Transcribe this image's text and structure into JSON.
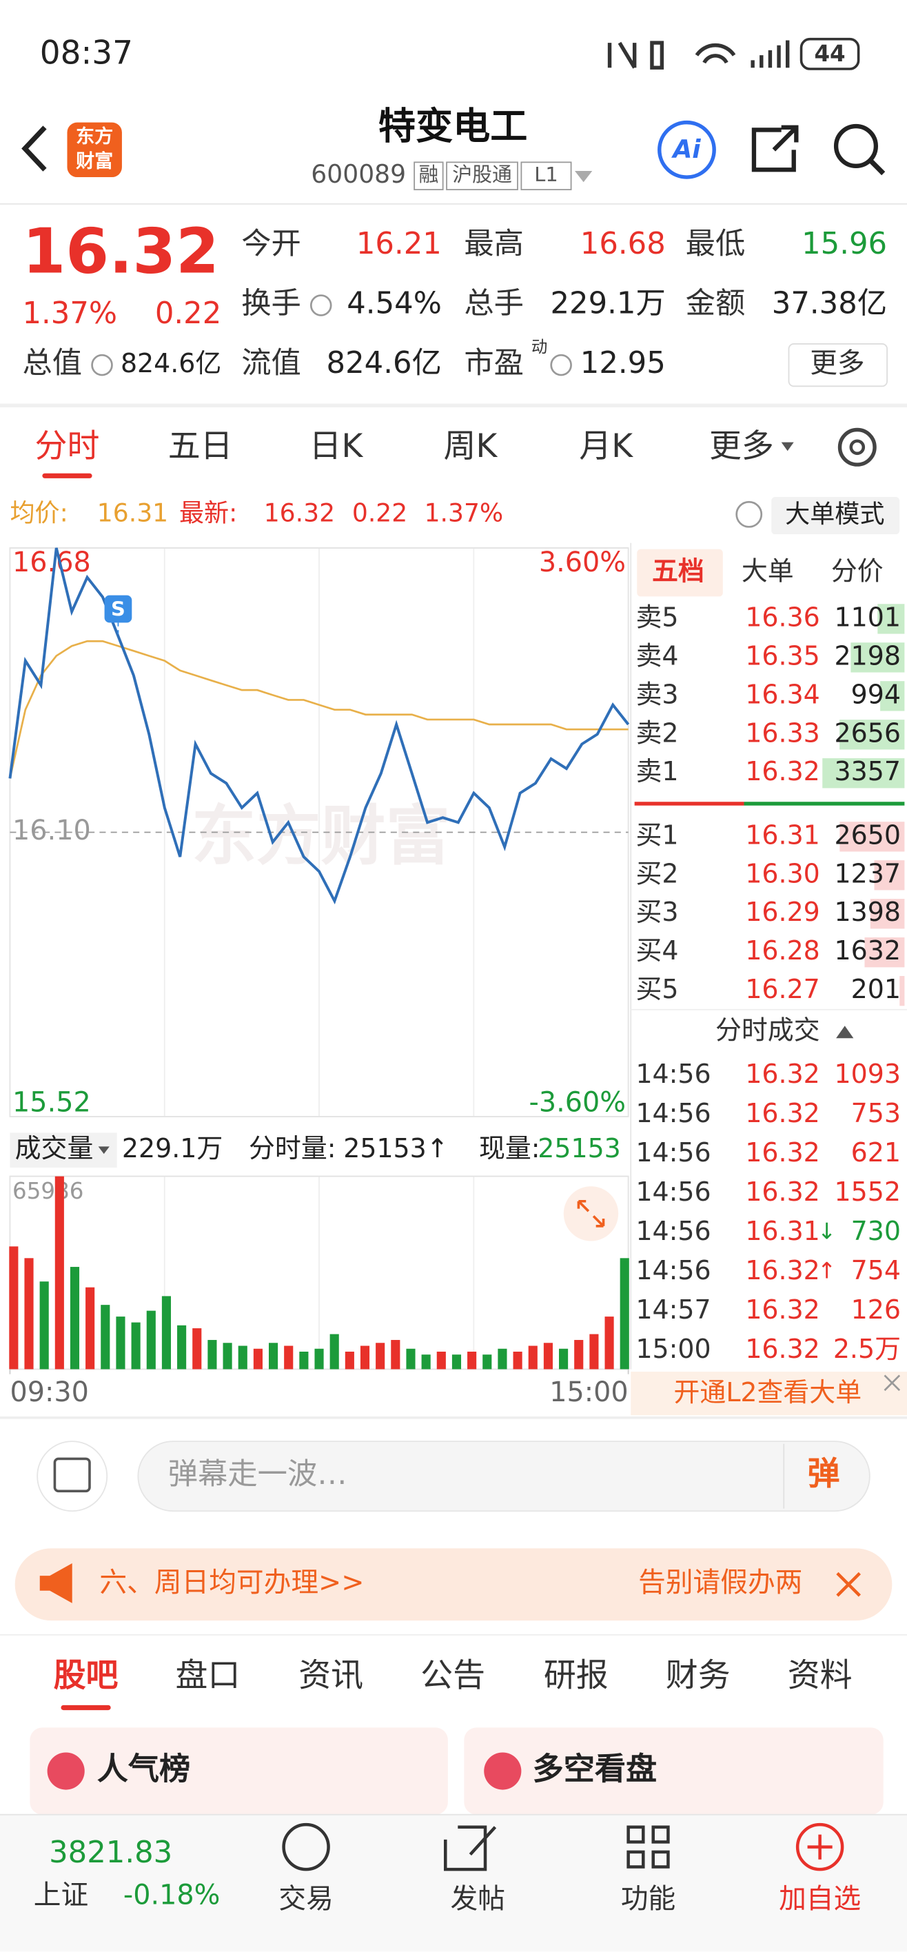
{
  "status_bar": {
    "time": "08:37",
    "battery": "44"
  },
  "header": {
    "logo": [
      "东方",
      "财富"
    ],
    "title": "特变电工",
    "code": "600089",
    "tags": [
      "融",
      "沪股通",
      "L1"
    ],
    "ai": "Ai"
  },
  "quote": {
    "price": "16.32",
    "pct": "1.37%",
    "change": "0.22",
    "color": "#e8312a",
    "fields": [
      {
        "label": "今开",
        "value": "16.21",
        "color": "#e8312a"
      },
      {
        "label": "最高",
        "value": "16.68",
        "color": "#e8312a"
      },
      {
        "label": "最低",
        "value": "15.96",
        "color": "#1c9b3a"
      },
      {
        "label": "换手",
        "value": "4.54%",
        "color": "#222222"
      },
      {
        "label": "总手",
        "value": "229.1万",
        "color": "#222222"
      },
      {
        "label": "金额",
        "value": "37.38亿",
        "color": "#222222"
      },
      {
        "label": "总值",
        "value": "824.6亿",
        "color": "#222222"
      },
      {
        "label": "流值",
        "value": "824.6亿",
        "color": "#222222"
      },
      {
        "label": "市盈",
        "sup": "动",
        "value": "12.95",
        "color": "#222222"
      }
    ],
    "more": "更多"
  },
  "tabs": [
    "分时",
    "五日",
    "日K",
    "周K",
    "月K",
    "更多"
  ],
  "info_bar": {
    "avg_label": "均价:",
    "avg": "16.31",
    "latest_label": "最新:",
    "latest": "16.32",
    "change": "0.22",
    "pct": "1.37%",
    "mode": "大单模式"
  },
  "watermark": "东方财富",
  "chart_data": [
    {
      "type": "line",
      "x": [
        0,
        6,
        12,
        18,
        24,
        30,
        36,
        42,
        48,
        54,
        60,
        66,
        72,
        78,
        84,
        90,
        96,
        102,
        108,
        114,
        120,
        126,
        132,
        138,
        144,
        150,
        156,
        162,
        168,
        174,
        180,
        186,
        192,
        198,
        204,
        210,
        216,
        222,
        228,
        234,
        240
      ],
      "xlim": [
        0,
        240
      ],
      "xticks": [
        {
          "value": 0,
          "label": "09:30"
        },
        {
          "value": 240,
          "label": "15:00"
        }
      ],
      "ylim": [
        15.52,
        16.68
      ],
      "yticks": [
        15.52,
        {
          "value": 16.1,
          "label": "16.10"
        },
        16.68
      ],
      "y2lim": [
        -3.6,
        3.6
      ],
      "y2ticks": [
        {
          "value": -3.6,
          "label": "-3.60%"
        },
        {
          "value": 3.6,
          "label": "3.60%"
        }
      ],
      "series": [
        {
          "color": "#2f6fb8",
          "values": [
            16.21,
            16.45,
            16.4,
            16.68,
            16.55,
            16.62,
            16.58,
            16.5,
            16.42,
            16.3,
            16.15,
            16.05,
            16.28,
            16.22,
            16.2,
            16.15,
            16.18,
            16.08,
            16.12,
            16.05,
            16.02,
            15.96,
            16.05,
            16.15,
            16.22,
            16.32,
            16.22,
            16.12,
            16.13,
            16.12,
            16.18,
            16.15,
            16.07,
            16.18,
            16.2,
            16.25,
            16.23,
            16.28,
            16.3,
            16.36,
            16.32
          ]
        },
        {
          "color": "#e8b04a",
          "values": [
            16.21,
            16.35,
            16.42,
            16.46,
            16.48,
            16.49,
            16.49,
            16.48,
            16.47,
            16.46,
            16.45,
            16.43,
            16.42,
            16.41,
            16.4,
            16.39,
            16.39,
            16.38,
            16.37,
            16.37,
            16.36,
            16.35,
            16.35,
            16.34,
            16.34,
            16.34,
            16.34,
            16.33,
            16.33,
            16.33,
            16.33,
            16.32,
            16.32,
            16.32,
            16.32,
            16.32,
            16.31,
            16.31,
            16.31,
            16.31,
            16.31
          ]
        }
      ],
      "annotations": [
        {
          "x": 42,
          "text": "S"
        }
      ]
    },
    {
      "type": "bar",
      "x": [
        0,
        6,
        12,
        18,
        24,
        30,
        36,
        42,
        48,
        54,
        60,
        66,
        72,
        78,
        84,
        90,
        96,
        102,
        108,
        114,
        120,
        126,
        132,
        138,
        144,
        150,
        156,
        162,
        168,
        174,
        180,
        186,
        192,
        198,
        204,
        210,
        216,
        222,
        228,
        234,
        240
      ],
      "xlim": [
        0,
        240
      ],
      "ylim": [
        0,
        65986
      ],
      "yticks": [
        65986
      ],
      "up_color": "#e8312a",
      "down_color": "#1c9b3a",
      "values": [
        42000,
        38000,
        30000,
        65986,
        35000,
        28000,
        22000,
        18000,
        16000,
        20000,
        25000,
        15000,
        14000,
        10000,
        9000,
        8000,
        7000,
        9000,
        8000,
        6000,
        7000,
        12000,
        6000,
        8000,
        9000,
        10000,
        7000,
        5000,
        6000,
        5000,
        6000,
        5000,
        7000,
        6000,
        8000,
        9000,
        7000,
        10000,
        12000,
        18000,
        38000
      ]
    }
  ],
  "volume_bar": {
    "label": "成交量",
    "total": "229.1万",
    "minute_label": "分时量:",
    "minute": "25153↑",
    "now_label": "现量:",
    "now": "25153"
  },
  "order_book": {
    "tabs": [
      "五档",
      "大单",
      "分价"
    ],
    "asks": [
      {
        "label": "卖5",
        "price": "16.36",
        "vol": 1101
      },
      {
        "label": "卖4",
        "price": "16.35",
        "vol": 2198
      },
      {
        "label": "卖3",
        "price": "16.34",
        "vol": 994
      },
      {
        "label": "卖2",
        "price": "16.33",
        "vol": 2656
      },
      {
        "label": "卖1",
        "price": "16.32",
        "vol": 3357
      }
    ],
    "bids": [
      {
        "label": "买1",
        "price": "16.31",
        "vol": 2650
      },
      {
        "label": "买2",
        "price": "16.30",
        "vol": 1237
      },
      {
        "label": "买3",
        "price": "16.29",
        "vol": 1398
      },
      {
        "label": "买4",
        "price": "16.28",
        "vol": 1632
      },
      {
        "label": "买5",
        "price": "16.27",
        "vol": 201
      }
    ]
  },
  "trades": {
    "title": "分时成交",
    "rows": [
      {
        "time": "14:56",
        "price": "16.32",
        "vol": "1093",
        "color": "#e8312a"
      },
      {
        "time": "14:56",
        "price": "16.32",
        "vol": "753",
        "color": "#e8312a"
      },
      {
        "time": "14:56",
        "price": "16.32",
        "vol": "621",
        "color": "#e8312a"
      },
      {
        "time": "14:56",
        "price": "16.32",
        "vol": "1552",
        "color": "#e8312a"
      },
      {
        "time": "14:56",
        "price": "16.31",
        "arrow": "↓",
        "vol": "730",
        "color": "#1c9b3a"
      },
      {
        "time": "14:56",
        "price": "16.32",
        "arrow": "↑",
        "vol": "754",
        "color": "#e8312a"
      },
      {
        "time": "14:57",
        "price": "16.32",
        "vol": "126",
        "color": "#e8312a"
      },
      {
        "time": "15:00",
        "price": "16.32",
        "vol": "2.5万",
        "color": "#e8312a"
      }
    ]
  },
  "l2_banner": "开通L2查看大单",
  "comment": {
    "placeholder": "弹幕走一波…",
    "button": "弹"
  },
  "notice": {
    "left": "六、周日均可办理>>",
    "right": "告别请假办两"
  },
  "bottom_tabs": [
    "股吧",
    "盘口",
    "资讯",
    "公告",
    "研报",
    "财务",
    "资料"
  ],
  "cards": [
    "人气榜",
    "多空看盘"
  ],
  "nav": {
    "index_value": "3821.83",
    "index_name": "上证",
    "index_pct": "-0.18%",
    "items": [
      "交易",
      "发帖",
      "功能",
      "加自选"
    ]
  }
}
